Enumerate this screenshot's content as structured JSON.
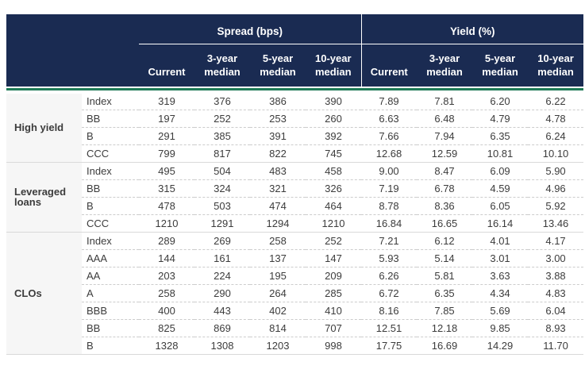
{
  "colors": {
    "header_bg": "#1A2B52",
    "accent_green": "#1E7A56",
    "category_green": "#0B7A52",
    "text_dark": "#3C3C3C",
    "cat_col_bg": "#F6F6F6",
    "solid_line": "#D9D9D9",
    "dashed_line": "#CCCCCC"
  },
  "chart_data": {
    "type": "table",
    "groups": [
      {
        "label": "Spread (bps)",
        "columns": [
          "Current",
          "3-year median",
          "5-year median",
          "10-year median"
        ]
      },
      {
        "label": "Yield (%)",
        "columns": [
          "Current",
          "3-year median",
          "5-year median",
          "10-year median"
        ]
      }
    ],
    "sub_headers": [
      "Current",
      "3-year\nmedian",
      "5-year\nmedian",
      "10-year\nmedian"
    ],
    "sections": [
      {
        "category": "High yield",
        "rows": [
          {
            "label": "Index",
            "spread": [
              "319",
              "376",
              "386",
              "390"
            ],
            "yield": [
              "7.89",
              "7.81",
              "6.20",
              "6.22"
            ]
          },
          {
            "label": "BB",
            "spread": [
              "197",
              "252",
              "253",
              "260"
            ],
            "yield": [
              "6.63",
              "6.48",
              "4.79",
              "4.78"
            ]
          },
          {
            "label": "B",
            "spread": [
              "291",
              "385",
              "391",
              "392"
            ],
            "yield": [
              "7.66",
              "7.94",
              "6.35",
              "6.24"
            ]
          },
          {
            "label": "CCC",
            "spread": [
              "799",
              "817",
              "822",
              "745"
            ],
            "yield": [
              "12.68",
              "12.59",
              "10.81",
              "10.10"
            ]
          }
        ]
      },
      {
        "category": "Leveraged loans",
        "rows": [
          {
            "label": "Index",
            "spread": [
              "495",
              "504",
              "483",
              "458"
            ],
            "yield": [
              "9.00",
              "8.47",
              "6.09",
              "5.90"
            ]
          },
          {
            "label": "BB",
            "spread": [
              "315",
              "324",
              "321",
              "326"
            ],
            "yield": [
              "7.19",
              "6.78",
              "4.59",
              "4.96"
            ]
          },
          {
            "label": "B",
            "spread": [
              "478",
              "503",
              "474",
              "464"
            ],
            "yield": [
              "8.78",
              "8.36",
              "6.05",
              "5.92"
            ]
          },
          {
            "label": "CCC",
            "spread": [
              "1210",
              "1291",
              "1294",
              "1210"
            ],
            "yield": [
              "16.84",
              "16.65",
              "16.14",
              "13.46"
            ]
          }
        ]
      },
      {
        "category": "CLOs",
        "rows": [
          {
            "label": "Index",
            "spread": [
              "289",
              "269",
              "258",
              "252"
            ],
            "yield": [
              "7.21",
              "6.12",
              "4.01",
              "4.17"
            ]
          },
          {
            "label": "AAA",
            "spread": [
              "144",
              "161",
              "137",
              "147"
            ],
            "yield": [
              "5.93",
              "5.14",
              "3.01",
              "3.00"
            ]
          },
          {
            "label": "AA",
            "spread": [
              "203",
              "224",
              "195",
              "209"
            ],
            "yield": [
              "6.26",
              "5.81",
              "3.63",
              "3.88"
            ]
          },
          {
            "label": "A",
            "spread": [
              "258",
              "290",
              "264",
              "285"
            ],
            "yield": [
              "6.72",
              "6.35",
              "4.34",
              "4.83"
            ]
          },
          {
            "label": "BBB",
            "spread": [
              "400",
              "443",
              "402",
              "410"
            ],
            "yield": [
              "8.16",
              "7.85",
              "5.69",
              "6.04"
            ]
          },
          {
            "label": "BB",
            "spread": [
              "825",
              "869",
              "814",
              "707"
            ],
            "yield": [
              "12.51",
              "12.18",
              "9.85",
              "8.93"
            ]
          },
          {
            "label": "B",
            "spread": [
              "1328",
              "1308",
              "1203",
              "998"
            ],
            "yield": [
              "17.75",
              "16.69",
              "14.29",
              "11.70"
            ]
          }
        ]
      }
    ]
  }
}
